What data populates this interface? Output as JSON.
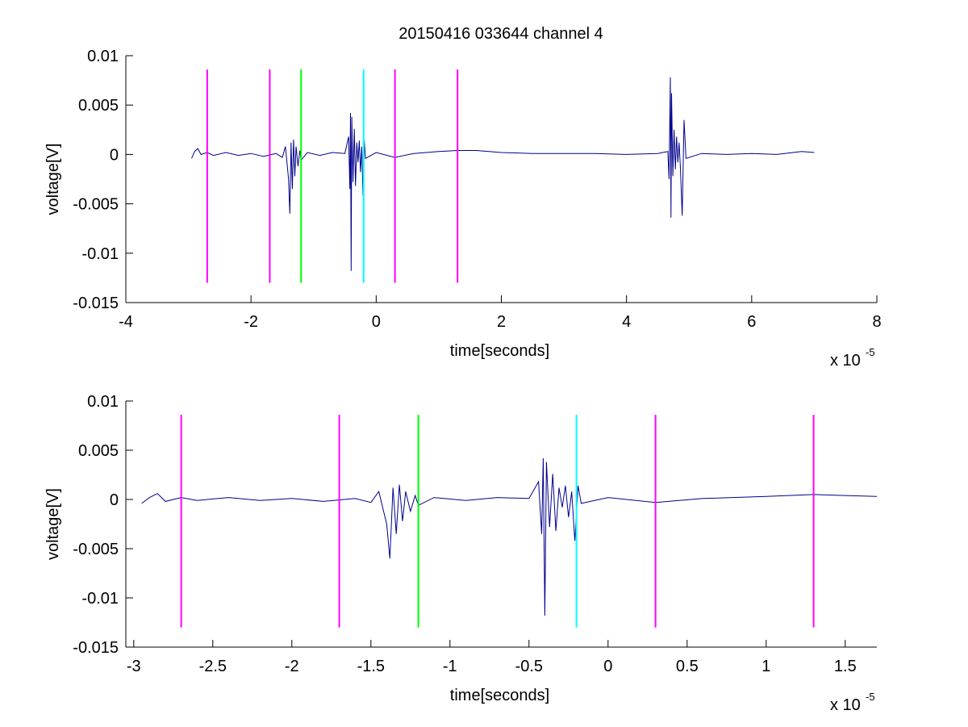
{
  "figure_title": "20150416 033644 channel 4",
  "chart_data": [
    {
      "type": "line",
      "title": "20150416 033644 channel 4",
      "xlabel": "time[seconds]",
      "ylabel": "voltage[V]",
      "x_multiplier_label": "x 10",
      "x_multiplier_exponent": "-5",
      "xlim": [
        -4,
        8
      ],
      "ylim": [
        -0.015,
        0.01
      ],
      "xticks": [
        -4,
        -2,
        0,
        2,
        4,
        6,
        8
      ],
      "xtick_labels": [
        "-4",
        "-2",
        "0",
        "2",
        "4",
        "6",
        "8"
      ],
      "yticks": [
        0.01,
        0.005,
        0,
        -0.005,
        -0.01,
        -0.015
      ],
      "ytick_labels": [
        "0.01",
        "0.005",
        "0",
        "-0.005",
        "-0.01",
        "-0.015"
      ],
      "grid": false,
      "signal": {
        "color": "#00008b",
        "points": [
          [
            -2.95,
            -0.0004
          ],
          [
            -2.9,
            0.0003
          ],
          [
            -2.85,
            0.0006
          ],
          [
            -2.8,
            0.0
          ],
          [
            -2.7,
            0.0002
          ],
          [
            -2.6,
            -0.0001
          ],
          [
            -2.4,
            0.0002
          ],
          [
            -2.2,
            -0.0001
          ],
          [
            -2.0,
            0.0001
          ],
          [
            -1.8,
            -0.0002
          ],
          [
            -1.6,
            0.0001
          ],
          [
            -1.5,
            -0.0003
          ],
          [
            -1.45,
            0.0008
          ],
          [
            -1.42,
            -0.0012
          ],
          [
            -1.4,
            -0.0025
          ],
          [
            -1.38,
            -0.006
          ],
          [
            -1.36,
            0.0012
          ],
          [
            -1.34,
            -0.0035
          ],
          [
            -1.32,
            0.0015
          ],
          [
            -1.3,
            -0.0022
          ],
          [
            -1.28,
            0.0008
          ],
          [
            -1.25,
            -0.0012
          ],
          [
            -1.22,
            0.0004
          ],
          [
            -1.2,
            -0.0006
          ],
          [
            -1.1,
            0.0002
          ],
          [
            -0.9,
            -0.0001
          ],
          [
            -0.7,
            0.0002
          ],
          [
            -0.5,
            0.0001
          ],
          [
            -0.44,
            0.0018
          ],
          [
            -0.42,
            -0.0035
          ],
          [
            -0.41,
            0.0042
          ],
          [
            -0.4,
            -0.0118
          ],
          [
            -0.39,
            0.0038
          ],
          [
            -0.37,
            -0.0028
          ],
          [
            -0.35,
            0.0026
          ],
          [
            -0.33,
            -0.0032
          ],
          [
            -0.31,
            0.0012
          ],
          [
            -0.29,
            -0.0008
          ],
          [
            -0.27,
            0.0014
          ],
          [
            -0.25,
            -0.0018
          ],
          [
            -0.23,
            0.0008
          ],
          [
            -0.21,
            -0.0042
          ],
          [
            -0.19,
            0.0014
          ],
          [
            -0.17,
            -0.0004
          ],
          [
            0.0,
            0.0002
          ],
          [
            0.3,
            -0.0003
          ],
          [
            0.6,
            0.0001
          ],
          [
            1.0,
            0.0003
          ],
          [
            1.3,
            0.0004
          ],
          [
            1.6,
            0.0004
          ],
          [
            2.0,
            0.0002
          ],
          [
            2.5,
            0.0001
          ],
          [
            3.0,
            0.0001
          ],
          [
            3.5,
            0.0001
          ],
          [
            4.0,
            0.0
          ],
          [
            4.5,
            0.0001
          ],
          [
            4.66,
            0.0003
          ],
          [
            4.68,
            -0.0025
          ],
          [
            4.7,
            0.0078
          ],
          [
            4.71,
            -0.0064
          ],
          [
            4.72,
            0.0062
          ],
          [
            4.74,
            -0.0022
          ],
          [
            4.76,
            0.0025
          ],
          [
            4.78,
            -0.0015
          ],
          [
            4.8,
            0.0018
          ],
          [
            4.82,
            -0.0008
          ],
          [
            4.84,
            0.0012
          ],
          [
            4.86,
            -0.0012
          ],
          [
            4.89,
            -0.0062
          ],
          [
            4.92,
            0.0035
          ],
          [
            4.95,
            -0.0004
          ],
          [
            5.2,
            0.0001
          ],
          [
            5.6,
            0.0
          ],
          [
            6.0,
            0.0001
          ],
          [
            6.4,
            0.0
          ],
          [
            6.8,
            0.0003
          ],
          [
            7.0,
            0.0002
          ]
        ]
      },
      "markers": [
        {
          "x": -2.7,
          "color": "#ff00ff"
        },
        {
          "x": -1.7,
          "color": "#ff00ff"
        },
        {
          "x": -1.2,
          "color": "#00ff00"
        },
        {
          "x": -0.2,
          "color": "#00ffff"
        },
        {
          "x": 0.3,
          "color": "#ff00ff"
        },
        {
          "x": 1.3,
          "color": "#ff00ff"
        }
      ],
      "marker_y_range": [
        -0.013,
        0.0086
      ]
    },
    {
      "type": "line",
      "title": "",
      "xlabel": "time[seconds]",
      "ylabel": "voltage[V]",
      "x_multiplier_label": "x 10",
      "x_multiplier_exponent": "-5",
      "xlim": [
        -3.05,
        1.7
      ],
      "ylim": [
        -0.015,
        0.01
      ],
      "xticks": [
        -3,
        -2.5,
        -2,
        -1.5,
        -1,
        -0.5,
        0,
        0.5,
        1,
        1.5
      ],
      "xtick_labels": [
        "-3",
        "-2.5",
        "-2",
        "-1.5",
        "-1",
        "-0.5",
        "0",
        "0.5",
        "1",
        "1.5"
      ],
      "yticks": [
        0.01,
        0.005,
        0,
        -0.005,
        -0.01,
        -0.015
      ],
      "ytick_labels": [
        "0.01",
        "0.005",
        "0",
        "-0.005",
        "-0.01",
        "-0.015"
      ],
      "grid": false,
      "signal": {
        "color": "#00008b",
        "points": [
          [
            -2.95,
            -0.0004
          ],
          [
            -2.9,
            0.0002
          ],
          [
            -2.85,
            0.0006
          ],
          [
            -2.8,
            -0.0002
          ],
          [
            -2.7,
            0.0002
          ],
          [
            -2.6,
            -0.0001
          ],
          [
            -2.4,
            0.0002
          ],
          [
            -2.2,
            -0.0001
          ],
          [
            -2.0,
            0.0001
          ],
          [
            -1.8,
            -0.0002
          ],
          [
            -1.6,
            0.0001
          ],
          [
            -1.5,
            -0.0003
          ],
          [
            -1.45,
            0.0008
          ],
          [
            -1.42,
            -0.0012
          ],
          [
            -1.4,
            -0.0025
          ],
          [
            -1.38,
            -0.006
          ],
          [
            -1.36,
            0.0012
          ],
          [
            -1.34,
            -0.0035
          ],
          [
            -1.32,
            0.0015
          ],
          [
            -1.3,
            -0.0022
          ],
          [
            -1.28,
            0.0008
          ],
          [
            -1.25,
            -0.0012
          ],
          [
            -1.22,
            0.0004
          ],
          [
            -1.2,
            -0.0006
          ],
          [
            -1.1,
            0.0002
          ],
          [
            -0.9,
            -0.0001
          ],
          [
            -0.7,
            0.0002
          ],
          [
            -0.5,
            0.0001
          ],
          [
            -0.44,
            0.0018
          ],
          [
            -0.42,
            -0.0035
          ],
          [
            -0.41,
            0.0042
          ],
          [
            -0.4,
            -0.0118
          ],
          [
            -0.39,
            0.0038
          ],
          [
            -0.37,
            -0.0028
          ],
          [
            -0.35,
            0.0026
          ],
          [
            -0.33,
            -0.0032
          ],
          [
            -0.31,
            0.0012
          ],
          [
            -0.29,
            -0.0008
          ],
          [
            -0.27,
            0.0014
          ],
          [
            -0.25,
            -0.0018
          ],
          [
            -0.23,
            0.0008
          ],
          [
            -0.21,
            -0.0042
          ],
          [
            -0.19,
            0.0014
          ],
          [
            -0.17,
            -0.0004
          ],
          [
            0.0,
            0.0002
          ],
          [
            0.3,
            -0.0003
          ],
          [
            0.6,
            0.0001
          ],
          [
            1.0,
            0.0003
          ],
          [
            1.3,
            0.0005
          ],
          [
            1.5,
            0.0004
          ],
          [
            1.7,
            0.0003
          ]
        ]
      },
      "markers": [
        {
          "x": -2.7,
          "color": "#ff00ff"
        },
        {
          "x": -1.7,
          "color": "#ff00ff"
        },
        {
          "x": -1.2,
          "color": "#00ff00"
        },
        {
          "x": -0.2,
          "color": "#00ffff"
        },
        {
          "x": 0.3,
          "color": "#ff00ff"
        },
        {
          "x": 1.3,
          "color": "#ff00ff"
        }
      ],
      "marker_y_range": [
        -0.013,
        0.0086
      ]
    }
  ]
}
